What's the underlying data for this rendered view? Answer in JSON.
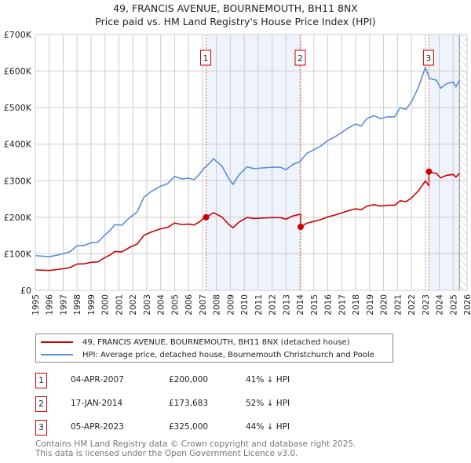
{
  "title": "49, FRANCIS AVENUE, BOURNEMOUTH, BH11 8NX",
  "subtitle": "Price paid vs. HM Land Registry's House Price Index (HPI)",
  "chart_data": {
    "type": "line",
    "xlim": [
      1995,
      2026
    ],
    "ylim": [
      0,
      700000
    ],
    "x_ticks": [
      "1995",
      "1996",
      "1997",
      "1998",
      "1999",
      "2000",
      "2001",
      "2002",
      "2003",
      "2004",
      "2005",
      "2006",
      "2007",
      "2008",
      "2009",
      "2010",
      "2011",
      "2012",
      "2013",
      "2014",
      "2015",
      "2016",
      "2017",
      "2018",
      "2019",
      "2020",
      "2021",
      "2022",
      "2023",
      "2024",
      "2025",
      "2026"
    ],
    "y_ticks": [
      {
        "v": 0,
        "label": "£0"
      },
      {
        "v": 100000,
        "label": "£100K"
      },
      {
        "v": 200000,
        "label": "£200K"
      },
      {
        "v": 300000,
        "label": "£300K"
      },
      {
        "v": 400000,
        "label": "£400K"
      },
      {
        "v": 500000,
        "label": "£500K"
      },
      {
        "v": 600000,
        "label": "£600K"
      },
      {
        "v": 700000,
        "label": "£700K"
      }
    ],
    "grid": true,
    "hatched_from": 2025.45,
    "colors": {
      "property": "#cc0000",
      "hpi": "#5b8ed6",
      "shade": "#eef3fc"
    },
    "hpi_series": [
      [
        1995,
        95
      ],
      [
        1996,
        92
      ],
      [
        1997,
        100
      ],
      [
        1997.5,
        106
      ],
      [
        1998,
        122
      ],
      [
        1998.5,
        123
      ],
      [
        1999,
        130
      ],
      [
        1999.5,
        132
      ],
      [
        2000,
        152
      ],
      [
        2000.4,
        165
      ],
      [
        2000.7,
        180
      ],
      [
        2001.2,
        178
      ],
      [
        2001.8,
        200
      ],
      [
        2002.3,
        214
      ],
      [
        2002.8,
        255
      ],
      [
        2003.3,
        270
      ],
      [
        2004,
        285
      ],
      [
        2004.5,
        292
      ],
      [
        2005,
        312
      ],
      [
        2005.5,
        305
      ],
      [
        2006,
        307
      ],
      [
        2006.4,
        303
      ],
      [
        2006.8,
        318
      ],
      [
        2007,
        330
      ],
      [
        2007.3,
        340
      ],
      [
        2007.8,
        360
      ],
      [
        2008.4,
        340
      ],
      [
        2008.9,
        305
      ],
      [
        2009.2,
        290
      ],
      [
        2009.6,
        315
      ],
      [
        2010.2,
        338
      ],
      [
        2010.7,
        333
      ],
      [
        2011.3,
        335
      ],
      [
        2012,
        337
      ],
      [
        2012.6,
        337
      ],
      [
        2013,
        330
      ],
      [
        2013.5,
        345
      ],
      [
        2014,
        352
      ],
      [
        2014.5,
        375
      ],
      [
        2015,
        385
      ],
      [
        2015.5,
        395
      ],
      [
        2016,
        410
      ],
      [
        2016.5,
        420
      ],
      [
        2017,
        432
      ],
      [
        2017.5,
        445
      ],
      [
        2018,
        455
      ],
      [
        2018.4,
        450
      ],
      [
        2018.8,
        470
      ],
      [
        2019.3,
        478
      ],
      [
        2019.8,
        470
      ],
      [
        2020.3,
        475
      ],
      [
        2020.8,
        475
      ],
      [
        2021.2,
        500
      ],
      [
        2021.6,
        495
      ],
      [
        2022,
        515
      ],
      [
        2022.5,
        555
      ],
      [
        2023,
        610
      ],
      [
        2023.3,
        580
      ],
      [
        2023.8,
        575
      ],
      [
        2024.1,
        553
      ],
      [
        2024.5,
        565
      ],
      [
        2025,
        570
      ],
      [
        2025.2,
        557
      ],
      [
        2025.45,
        575
      ]
    ],
    "series": [
      {
        "name": "49, FRANCIS AVENUE, BOURNEMOUTH, BH11 8NX (detached house)"
      },
      {
        "name": "HPI: Average price, detached house, Bournemouth Christchurch and Poole"
      }
    ],
    "sales": [
      {
        "n": "1",
        "x": 2007.26,
        "date": "04-APR-2007",
        "price": "£200,000",
        "value": 200000,
        "hpi": "41% ↓ HPI"
      },
      {
        "n": "2",
        "x": 2014.05,
        "date": "17-JAN-2014",
        "price": "£173,683",
        "value": 173683,
        "hpi": "52% ↓ HPI"
      },
      {
        "n": "3",
        "x": 2023.26,
        "date": "05-APR-2023",
        "price": "£325,000",
        "value": 325000,
        "hpi": "44% ↓ HPI"
      }
    ]
  },
  "footer": {
    "line1": "Contains HM Land Registry data © Crown copyright and database right 2025.",
    "line2": "This data is licensed under the Open Government Licence v3.0."
  }
}
